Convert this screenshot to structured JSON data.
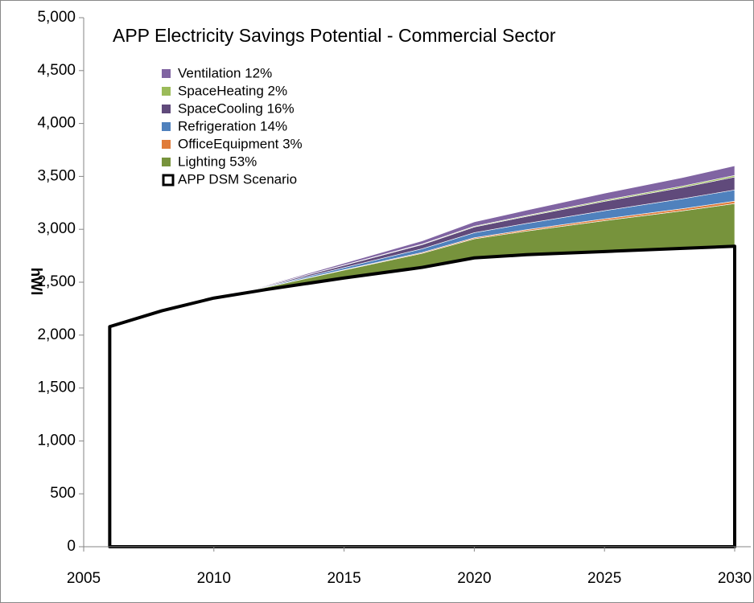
{
  "chart_data": {
    "type": "stacked_area",
    "title": "APP Electricity  Savings Potential - Commercial Sector",
    "ylabel": "hWl",
    "x": [
      2006,
      2008,
      2010,
      2012,
      2015,
      2018,
      2020,
      2022,
      2025,
      2028,
      2030
    ],
    "xlim": [
      2005,
      2030
    ],
    "xticks": [
      2005,
      2010,
      2015,
      2020,
      2025,
      2030
    ],
    "ylim": [
      0,
      5000
    ],
    "yticks": [
      0,
      500,
      {
        "value": 1000,
        "label": "1,000"
      },
      {
        "value": 1500,
        "label": "1,500"
      },
      {
        "value": 2000,
        "label": "2,000"
      },
      {
        "value": 2500,
        "label": "2,500"
      },
      {
        "value": 3000,
        "label": "3,000"
      },
      {
        "value": 3500,
        "label": "3,500"
      },
      {
        "value": 4000,
        "label": "4,000"
      },
      {
        "value": 4500,
        "label": "4,500"
      },
      {
        "value": 5000,
        "label": "5,000"
      }
    ],
    "series": [
      {
        "name": "APP DSM Scenario",
        "color": "#000000",
        "values": [
          2080,
          2230,
          2350,
          2430,
          2540,
          2640,
          2730,
          2760,
          2790,
          2820,
          2840
        ]
      },
      {
        "name": "Lighting 53%",
        "color": "#77933c",
        "values": [
          0,
          0,
          0,
          21,
          74,
          133,
          180,
          223,
          292,
          355,
          403
        ]
      },
      {
        "name": "OfficeEquipment 3%",
        "color": "#e07b39",
        "values": [
          0,
          0,
          0,
          1,
          4,
          8,
          10,
          13,
          17,
          20,
          23
        ]
      },
      {
        "name": "Refrigeration 14%",
        "color": "#4f81bd",
        "values": [
          0,
          0,
          0,
          6,
          20,
          35,
          48,
          59,
          77,
          94,
          106
        ]
      },
      {
        "name": "SpaceCooling 16%",
        "color": "#604a7b",
        "values": [
          0,
          0,
          0,
          6,
          22,
          40,
          54,
          67,
          88,
          107,
          122
        ]
      },
      {
        "name": "SpaceHeating 2%",
        "color": "#9bbb59",
        "values": [
          0,
          0,
          0,
          1,
          3,
          5,
          7,
          8,
          11,
          13,
          15
        ]
      },
      {
        "name": "Ventilation 12%",
        "color": "#8064a2",
        "values": [
          0,
          0,
          0,
          5,
          17,
          30,
          41,
          50,
          66,
          80,
          91
        ]
      }
    ]
  }
}
